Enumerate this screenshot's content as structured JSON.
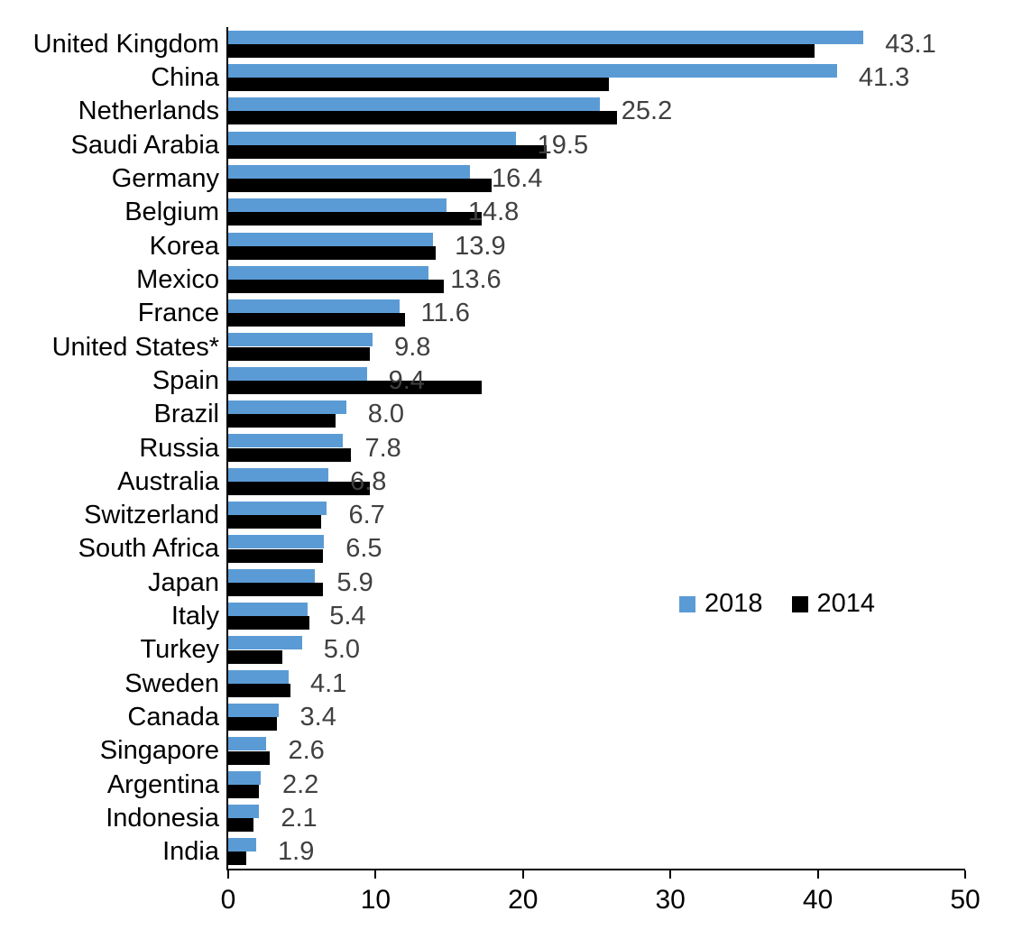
{
  "chart_data": {
    "type": "bar",
    "orientation": "horizontal",
    "title": "",
    "xlabel": "",
    "ylabel": "",
    "xlim": [
      0,
      50
    ],
    "x_ticks": [
      "0",
      "10",
      "20",
      "30",
      "40",
      "50"
    ],
    "grid": false,
    "legend_position": "middle-right",
    "categories": [
      "United Kingdom",
      "China",
      "Netherlands",
      "Saudi Arabia",
      "Germany",
      "Belgium",
      "Korea",
      "Mexico",
      "France",
      "United States*",
      "Spain",
      "Brazil",
      "Russia",
      "Australia",
      "Switzerland",
      "South Africa",
      "Japan",
      "Italy",
      "Turkey",
      "Sweden",
      "Canada",
      "Singapore",
      "Argentina",
      "Indonesia",
      "India"
    ],
    "series": [
      {
        "name": "2018",
        "color": "#5B9BD5",
        "values": [
          43.1,
          41.3,
          25.2,
          19.5,
          16.4,
          14.8,
          13.9,
          13.6,
          11.6,
          9.8,
          9.4,
          8.0,
          7.8,
          6.8,
          6.7,
          6.5,
          5.9,
          5.4,
          5.0,
          4.1,
          3.4,
          2.6,
          2.2,
          2.1,
          1.9
        ]
      },
      {
        "name": "2014",
        "color": "#000000",
        "values": [
          39.8,
          25.8,
          26.4,
          21.6,
          17.9,
          17.2,
          14.1,
          14.6,
          12.0,
          9.6,
          17.2,
          7.3,
          8.3,
          9.6,
          6.3,
          6.4,
          6.4,
          5.5,
          3.7,
          4.2,
          3.3,
          2.8,
          2.1,
          1.7,
          1.2
        ]
      }
    ],
    "data_labels": [
      "43.1",
      "41.3",
      "25.2",
      "19.5",
      "16.4",
      "14.8",
      "13.9",
      "13.6",
      "11.6",
      "9.8",
      "9.4",
      "8.0",
      "7.8",
      "6.8",
      "6.7",
      "6.5",
      "5.9",
      "5.4",
      "5.0",
      "4.1",
      "3.4",
      "2.6",
      "2.2",
      "2.1",
      "1.9"
    ],
    "data_label_series": "2018",
    "data_label_color": "#404040",
    "axis_color": "#000000"
  },
  "legend": {
    "entries": [
      {
        "label": "2018",
        "color": "#5B9BD5"
      },
      {
        "label": "2014",
        "color": "#000000"
      }
    ]
  }
}
